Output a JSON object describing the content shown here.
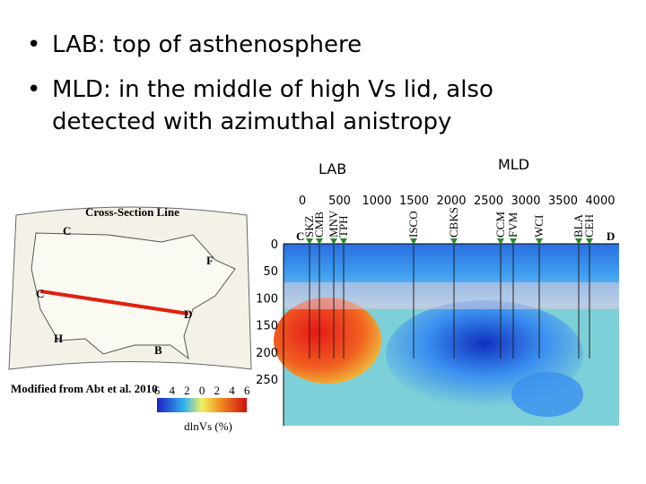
{
  "bullets": [
    "LAB: top of asthenosphere",
    "MLD: in the middle of high Vs lid, also",
    "detected with azimuthal anistropy"
  ],
  "labels": {
    "lab": "LAB",
    "mld": "MLD"
  },
  "map": {
    "title": "Cross-Section Line",
    "credit": "Modified from Abt et al. 2010",
    "points": [
      "C",
      "F",
      "D",
      "H",
      "B"
    ],
    "colorbar": {
      "ticks": [
        "6",
        "4",
        "2",
        "0",
        "2",
        "4",
        "6"
      ],
      "label": "dlnVs (%)"
    }
  },
  "section": {
    "x_ticks": [
      "0",
      "500",
      "1000",
      "1500",
      "2000",
      "2500",
      "3000",
      "3500",
      "4000"
    ],
    "y_ticks": [
      "0",
      "50",
      "100",
      "150",
      "200",
      "250"
    ],
    "ends": [
      "C",
      "D"
    ],
    "stations": [
      "SKZ",
      "CMB",
      "MNV",
      "TPH",
      "ISCO",
      "CBKS",
      "CCM",
      "FVM",
      "WCI",
      "BLA",
      "CEH"
    ]
  }
}
